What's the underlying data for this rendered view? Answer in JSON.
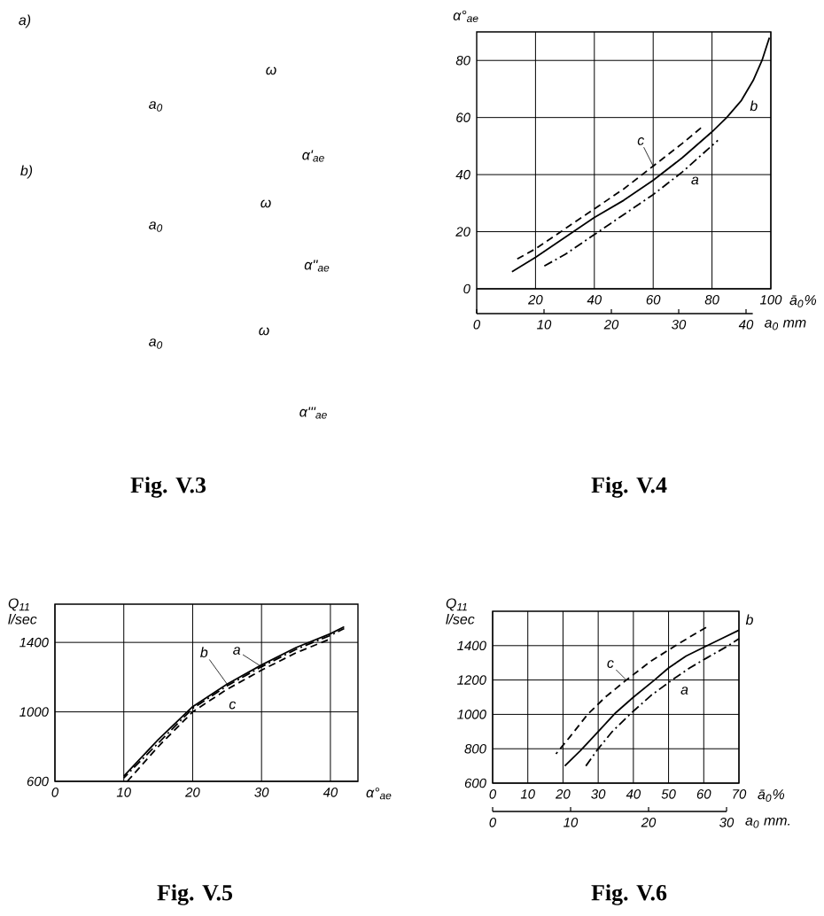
{
  "chart_data": [
    {
      "type": "other",
      "title": "Fig. V.3",
      "annotations": [
        "a)",
        "b)",
        "ω",
        "ω",
        "ω",
        "a$_{0}$",
        "a$_{0}$",
        "a$_{0}$",
        "α'$_{ae}$",
        "α''$_{ae}$",
        "α'''$_{ae}$"
      ]
    },
    {
      "type": "line",
      "title": "Fig. V.4",
      "xlabel": "ā$_{0}$%",
      "x2label": "a$_{0}$ mm",
      "ylabel": "α°$_{ae}$",
      "xlim": [
        0,
        100
      ],
      "xticks": [
        20,
        40,
        60,
        80,
        100
      ],
      "x2lim": [
        0,
        41
      ],
      "x2ticks": [
        0,
        10,
        20,
        30,
        40
      ],
      "ylim": [
        0,
        90
      ],
      "yticks": [
        0,
        20,
        40,
        60,
        80
      ],
      "grid": true,
      "series": [
        {
          "name": "a",
          "color": "#000000",
          "line_style": "dashdot",
          "x": [
            23,
            30,
            40,
            50,
            60,
            70,
            82
          ],
          "values": [
            8,
            12,
            19,
            26,
            33,
            41,
            52
          ]
        },
        {
          "name": "b",
          "color": "#000000",
          "line_style": "solid",
          "x": [
            12,
            20,
            30,
            40,
            50,
            60,
            70,
            80,
            85,
            90,
            94,
            97,
            99.5
          ],
          "values": [
            6,
            11,
            18,
            25,
            31,
            38,
            46,
            55,
            60,
            66,
            73,
            80,
            88
          ]
        },
        {
          "name": "c",
          "color": "#000000",
          "line_style": "dashed",
          "x": [
            13,
            20,
            30,
            40,
            50,
            60,
            70,
            77
          ],
          "values": [
            10,
            14,
            21,
            28,
            35,
            43,
            51,
            57
          ]
        }
      ]
    },
    {
      "type": "line",
      "title": "Fig. V.5",
      "xlabel": "α°$_{ae}$",
      "ylabel": "Q$_{11}$ l/sec",
      "xlim": [
        0,
        44
      ],
      "xticks": [
        0,
        10,
        20,
        30,
        40
      ],
      "ylim": [
        600,
        1620
      ],
      "yticks": [
        600,
        1000,
        1400
      ],
      "grid": true,
      "series": [
        {
          "name": "a",
          "color": "#000000",
          "line_style": "dashdot",
          "x": [
            10,
            15,
            20,
            25,
            30,
            35,
            40,
            42
          ],
          "values": [
            620,
            820,
            1020,
            1150,
            1260,
            1360,
            1440,
            1480
          ]
        },
        {
          "name": "b",
          "color": "#000000",
          "line_style": "solid",
          "x": [
            10,
            15,
            20,
            25,
            30,
            35,
            40,
            42
          ],
          "values": [
            630,
            840,
            1030,
            1160,
            1270,
            1370,
            1450,
            1490
          ]
        },
        {
          "name": "c",
          "color": "#000000",
          "line_style": "dashed",
          "x": [
            10.5,
            15,
            20,
            25,
            30,
            35,
            40
          ],
          "values": [
            600,
            800,
            1000,
            1130,
            1240,
            1340,
            1420
          ]
        }
      ]
    },
    {
      "type": "line",
      "title": "Fig. V.6",
      "xlabel": "ā$_{0}$%",
      "x2label": "a$_{0}$ mm.",
      "ylabel": "Q$_{11}$ l/sec",
      "xlim": [
        0,
        70
      ],
      "xticks": [
        0,
        10,
        20,
        30,
        40,
        50,
        60,
        70
      ],
      "x2lim": [
        0,
        30
      ],
      "x2ticks": [
        0,
        10,
        20,
        30
      ],
      "ylim": [
        600,
        1600
      ],
      "yticks": [
        600,
        800,
        1000,
        1200,
        1400
      ],
      "grid": true,
      "series": [
        {
          "name": "a",
          "color": "#000000",
          "line_style": "dashdot",
          "x": [
            26.5,
            30,
            34,
            39,
            45,
            51,
            56,
            61,
            67,
            70
          ],
          "values": [
            700,
            800,
            900,
            1000,
            1110,
            1200,
            1270,
            1330,
            1400,
            1440
          ]
        },
        {
          "name": "b",
          "color": "#000000",
          "line_style": "solid",
          "x": [
            20.5,
            25,
            30,
            35,
            40,
            46,
            50,
            55,
            61,
            65,
            70
          ],
          "values": [
            700,
            790,
            900,
            1010,
            1100,
            1200,
            1270,
            1340,
            1400,
            1440,
            1490
          ]
        },
        {
          "name": "c",
          "color": "#000000",
          "line_style": "dashed",
          "x": [
            18,
            22,
            27,
            32,
            38,
            45,
            52,
            56,
            61
          ],
          "values": [
            770,
            870,
            1000,
            1100,
            1200,
            1310,
            1400,
            1450,
            1510
          ]
        }
      ]
    }
  ]
}
